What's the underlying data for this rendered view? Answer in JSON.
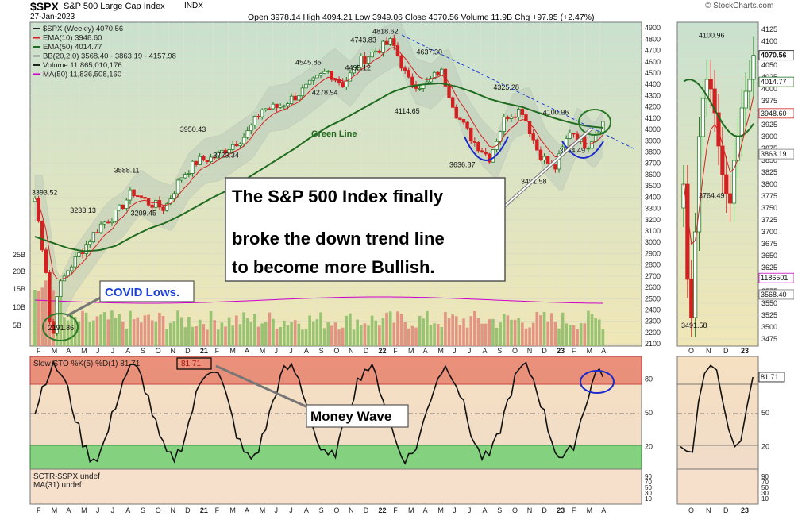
{
  "header": {
    "symbol": "$SPX",
    "name": "S&P 500 Large Cap Index",
    "exchange": "INDX",
    "date": "27-Jan-2023",
    "ohlc": "Open 3978.14  High 4094.21  Low 3949.06  Close 4070.56  Volume 11.9B  Chg +97.95 (+2.47%)",
    "credit": "© StockCharts.com"
  },
  "legend": [
    {
      "text": "$SPX (Weekly) 4070.56",
      "color": "#222222"
    },
    {
      "text": "EMA(10) 3948.60",
      "color": "#d42020"
    },
    {
      "text": "EMA(50) 4014.77",
      "color": "#1f6b1f"
    },
    {
      "text": "BB(20,2.0) 3568.40 - 3863.19 - 4157.98",
      "color": "#888888"
    },
    {
      "text": "Volume 11,865,010,176",
      "color": "#222222"
    },
    {
      "text": "MA(50) 11,836,508,160",
      "color": "#cc00cc"
    }
  ],
  "main_axis": {
    "ticks": [
      4900,
      4800,
      4700,
      4600,
      4500,
      4400,
      4300,
      4200,
      4100,
      4000,
      3900,
      3800,
      3700,
      3600,
      3500,
      3400,
      3300,
      3200,
      3100,
      3000,
      2900,
      2800,
      2700,
      2600,
      2500,
      2400,
      2300,
      2200,
      2100
    ],
    "ylim": [
      2080,
      4950
    ],
    "volume_ticks": [
      "25B",
      "20B",
      "15B",
      "10B",
      "5B"
    ]
  },
  "month_labels": [
    "F",
    "M",
    "A",
    "M",
    "J",
    "J",
    "A",
    "S",
    "O",
    "N",
    "D",
    "21",
    "F",
    "M",
    "A",
    "M",
    "J",
    "J",
    "A",
    "S",
    "O",
    "N",
    "D",
    "22",
    "F",
    "M",
    "A",
    "M",
    "J",
    "J",
    "A",
    "S",
    "O",
    "N",
    "D",
    "23",
    "F",
    "M",
    "A"
  ],
  "price_labels": [
    {
      "text": "3393.52",
      "x": 2,
      "v": 3393.52
    },
    {
      "text": "3233.13",
      "x": 9,
      "v": 3233.13
    },
    {
      "text": "3588.11",
      "x": 17,
      "v": 3588.11
    },
    {
      "text": "3209.45",
      "x": 20,
      "v": 3209.45
    },
    {
      "text": "3950.43",
      "x": 29,
      "v": 3950.43
    },
    {
      "text": "3723.34",
      "x": 35,
      "v": 3723.34
    },
    {
      "text": "4545.85",
      "x": 50,
      "v": 4545.85
    },
    {
      "text": "4278.94",
      "x": 53,
      "v": 4278.94
    },
    {
      "text": "4495.12",
      "x": 59,
      "v": 4495.12
    },
    {
      "text": "4743.83",
      "x": 60,
      "v": 4743.83
    },
    {
      "text": "4818.62",
      "x": 64,
      "v": 4818.62
    },
    {
      "text": "4637.30",
      "x": 72,
      "v": 4637.3
    },
    {
      "text": "4114.65",
      "x": 68,
      "v": 4114.65
    },
    {
      "text": "3636.87",
      "x": 78,
      "v": 3636.87
    },
    {
      "text": "4325.28",
      "x": 86,
      "v": 4325.28
    },
    {
      "text": "3491.58",
      "x": 91,
      "v": 3491.58
    },
    {
      "text": "4100.96",
      "x": 95,
      "v": 4100.96
    },
    {
      "text": "3764.49",
      "x": 98,
      "v": 3764.49
    },
    {
      "text": "2191.86",
      "x": 5,
      "v": 2191.86
    }
  ],
  "annotations": {
    "main_callout": "The S&P 500 Index finally broke the down trend line to become more Bullish.",
    "main_callout_lines": [
      "The S&P 500 Index finally",
      "broke the down trend line",
      "to become more Bullish."
    ],
    "covid": "COVID Lows.",
    "green_line": "Green Line",
    "money_wave": "Money Wave"
  },
  "stoch": {
    "label": "Slow STO %K(5) %D(1) 81.71",
    "value_box": "81.71",
    "ticks": [
      "80",
      "50",
      "20"
    ],
    "right_value": "81.71"
  },
  "sctr": {
    "label1": "SCTR-$SPX undef",
    "label2": "MA(31) undef",
    "ticks": [
      "90",
      "70",
      "50",
      "30",
      "10"
    ]
  },
  "side_panel": {
    "ticks": [
      4125,
      4100,
      4075,
      4050,
      4025,
      4000,
      3975,
      3950,
      3925,
      3900,
      3875,
      3850,
      3825,
      3800,
      3775,
      3750,
      3725,
      3700,
      3675,
      3650,
      3625,
      3600,
      3575,
      3550,
      3525,
      3500,
      3475
    ],
    "ylim": [
      3460,
      4140
    ],
    "value_labels": [
      "4070.56",
      "4014.77",
      "3948.60",
      "3863.19",
      "1186501",
      "3568.40"
    ],
    "price_labels": [
      {
        "text": "4100.96",
        "v": 4100.96
      },
      {
        "text": "3764.49",
        "v": 3764.49
      },
      {
        "text": "3491.58",
        "v": 3491.58
      }
    ],
    "month_labels": [
      "O",
      "N",
      "D",
      "23"
    ]
  },
  "colors": {
    "price_up": "#1f7a1f",
    "price_down": "#d42020",
    "ema10": "#d42020",
    "ema50": "#1f6b1f",
    "trend_line": "#1a3fd6",
    "cup_arc": "#1a2acc",
    "callout_border": "#555555",
    "money_wave_red": "#e45a48",
    "money_wave_green": "#6fce6f"
  },
  "chart_data": {
    "type": "line",
    "title": "$SPX S&P 500 Large Cap Index (Weekly)",
    "x": [
      "Feb-2020",
      "Mar-2020",
      "Apr-2020",
      "May-2020",
      "Jun-2020",
      "Jul-2020",
      "Aug-2020",
      "Sep-2020",
      "Oct-2020",
      "Nov-2020",
      "Dec-2020",
      "Jan-2021",
      "Feb-2021",
      "Mar-2021",
      "Apr-2021",
      "May-2021",
      "Jun-2021",
      "Jul-2021",
      "Aug-2021",
      "Sep-2021",
      "Oct-2021",
      "Nov-2021",
      "Dec-2021",
      "Jan-2022",
      "Feb-2022",
      "Mar-2022",
      "Apr-2022",
      "May-2022",
      "Jun-2022",
      "Jul-2022",
      "Aug-2022",
      "Sep-2022",
      "Oct-2022",
      "Nov-2022",
      "Dec-2022",
      "Jan-2023"
    ],
    "series": [
      {
        "name": "$SPX",
        "values": [
          3393,
          2450,
          2750,
          2950,
          3150,
          3250,
          3450,
          3350,
          3300,
          3580,
          3720,
          3750,
          3850,
          3950,
          4180,
          4200,
          4290,
          4400,
          4520,
          4400,
          4600,
          4700,
          4780,
          4430,
          4380,
          4530,
          4130,
          3900,
          3750,
          4120,
          4180,
          3800,
          3640,
          4000,
          3850,
          4070
        ]
      },
      {
        "name": "EMA(50)",
        "values": [
          3050,
          3000,
          2950,
          2920,
          2930,
          2970,
          3050,
          3120,
          3170,
          3240,
          3320,
          3400,
          3470,
          3560,
          3650,
          3740,
          3830,
          3930,
          4020,
          4090,
          4170,
          4250,
          4330,
          4380,
          4400,
          4410,
          4380,
          4330,
          4270,
          4230,
          4200,
          4150,
          4100,
          4060,
          4030,
          4015
        ]
      }
    ],
    "ylim": [
      2080,
      4950
    ],
    "yscale": "linear"
  }
}
